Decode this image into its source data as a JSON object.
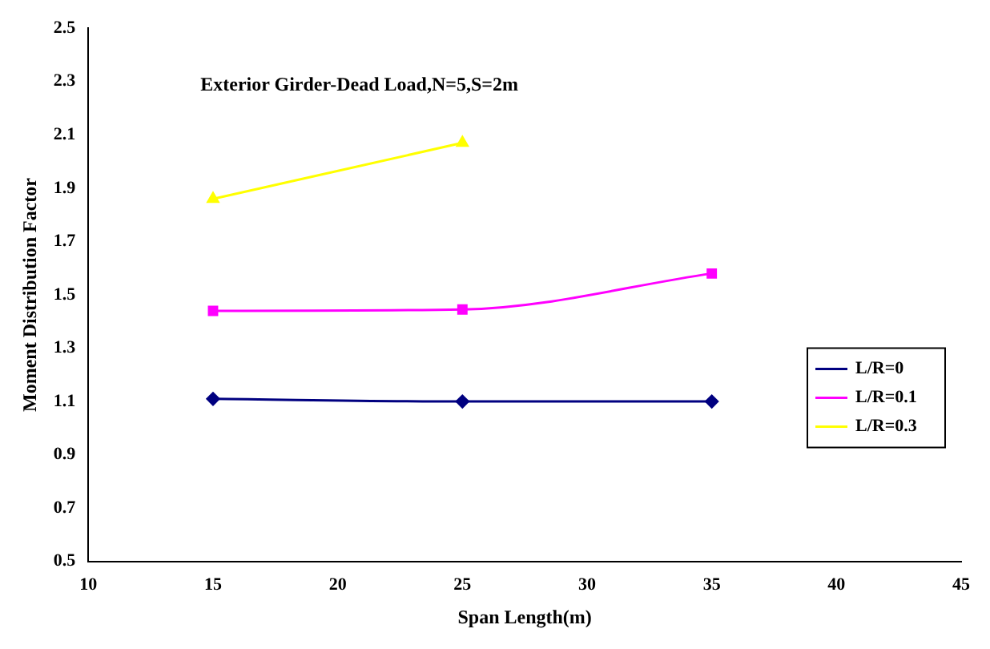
{
  "chart_data": {
    "type": "line",
    "title": "Exterior Girder-Dead Load,N=5,S=2m",
    "xlabel": "Span Length(m)",
    "ylabel": "Moment Distribution Factor",
    "x": [
      15,
      25,
      35
    ],
    "series": [
      {
        "name": "L/R=0",
        "color": "#000080",
        "values": [
          1.11,
          1.1,
          1.1
        ],
        "marker": "diamond"
      },
      {
        "name": "L/R=0.1",
        "color": "#ff00ff",
        "values": [
          1.44,
          1.445,
          1.58
        ],
        "marker": "square"
      },
      {
        "name": "L/R=0.3",
        "color": "#ffff00",
        "values": [
          1.86,
          2.07,
          null
        ],
        "marker": "triangle"
      }
    ],
    "xlim": [
      10,
      45
    ],
    "xticks": [
      10,
      15,
      20,
      25,
      30,
      35,
      40,
      45
    ],
    "ylim": [
      0.5,
      2.5
    ],
    "yticks": [
      0.5,
      0.7,
      0.9,
      1.1,
      1.3,
      1.5,
      1.7,
      1.9,
      2.1,
      2.3,
      2.5
    ],
    "grid": false,
    "legend": "right",
    "line_style": "solid"
  }
}
